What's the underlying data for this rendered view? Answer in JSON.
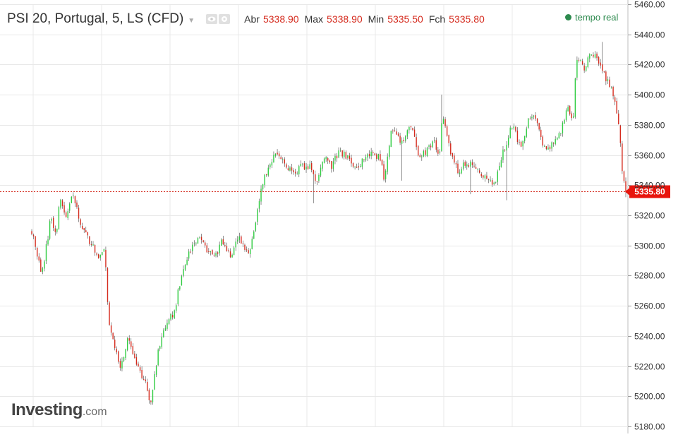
{
  "header": {
    "title": "PSI 20, Portugal, 5, LS (CFD)",
    "open_label": "Abr",
    "open_value": "5338.90",
    "high_label": "Max",
    "high_value": "5338.90",
    "low_label": "Min",
    "low_value": "5335.50",
    "close_label": "Fch",
    "close_value": "5335.80",
    "realtime_label": "tempo real",
    "icons": [
      "eye-icon",
      "gear-icon"
    ]
  },
  "brand": {
    "main": "Investing",
    "tld": ".com"
  },
  "colors": {
    "up": "#2ecc40",
    "down": "#d52b1e",
    "wick": "#444444",
    "grid": "#e8e8e8",
    "price_line": "#d52b1e",
    "price_badge": "#e8150d",
    "realtime": "#2d8a4e"
  },
  "chart_data": {
    "type": "candlestick",
    "ylim": [
      5180,
      5460
    ],
    "y_ticks": [
      5180,
      5200,
      5220,
      5240,
      5260,
      5280,
      5300,
      5320,
      5340,
      5360,
      5380,
      5400,
      5420,
      5440,
      5460
    ],
    "y_tick_labels": [
      "5180.00",
      "5200.00",
      "5220.00",
      "5240.00",
      "5260.00",
      "5280.00",
      "5300.00",
      "5320.00",
      "5340.00",
      "5360.00",
      "5380.00",
      "5400.00",
      "5420.00",
      "5440.00",
      "5460.00"
    ],
    "last_price": 5335.8,
    "last_price_label": "5335.80",
    "grid": true,
    "path_close": [
      [
        0,
        5310
      ],
      [
        1.3,
        5280
      ],
      [
        2.4,
        5318
      ],
      [
        3.1,
        5308
      ],
      [
        3.6,
        5332
      ],
      [
        4.3,
        5318
      ],
      [
        5.1,
        5335
      ],
      [
        6.2,
        5315
      ],
      [
        7.1,
        5306
      ],
      [
        8.3,
        5293
      ],
      [
        9.3,
        5297
      ],
      [
        9.8,
        5248
      ],
      [
        11.2,
        5218
      ],
      [
        12.3,
        5240
      ],
      [
        13.3,
        5220
      ],
      [
        14.3,
        5212
      ],
      [
        15.1,
        5196
      ],
      [
        16.1,
        5230
      ],
      [
        17.1,
        5248
      ],
      [
        18.1,
        5256
      ],
      [
        19.2,
        5285
      ],
      [
        20.2,
        5298
      ],
      [
        21.2,
        5306
      ],
      [
        22.2,
        5298
      ],
      [
        23.2,
        5292
      ],
      [
        24.2,
        5303
      ],
      [
        25.2,
        5292
      ],
      [
        26.1,
        5306
      ],
      [
        27.1,
        5298
      ],
      [
        27.7,
        5294
      ],
      [
        28.5,
        5318
      ],
      [
        29.2,
        5338
      ],
      [
        30.2,
        5355
      ],
      [
        31.2,
        5362
      ],
      [
        32.3,
        5352
      ],
      [
        33.2,
        5348
      ],
      [
        34.3,
        5352
      ],
      [
        35.3,
        5353
      ],
      [
        36.1,
        5342
      ],
      [
        37.1,
        5358
      ],
      [
        38.1,
        5353
      ],
      [
        39.1,
        5362
      ],
      [
        40.2,
        5358
      ],
      [
        41.2,
        5350
      ],
      [
        42.2,
        5358
      ],
      [
        43.2,
        5360
      ],
      [
        44.2,
        5358
      ],
      [
        44.8,
        5345
      ],
      [
        45.7,
        5378
      ],
      [
        47.2,
        5368
      ],
      [
        48.2,
        5380
      ],
      [
        49.2,
        5360
      ],
      [
        50.2,
        5362
      ],
      [
        51.2,
        5370
      ],
      [
        51.8,
        5355
      ],
      [
        52.2,
        5388
      ],
      [
        53.2,
        5362
      ],
      [
        54.2,
        5348
      ],
      [
        55.2,
        5355
      ],
      [
        56.2,
        5352
      ],
      [
        57.2,
        5348
      ],
      [
        58.2,
        5344
      ],
      [
        58.9,
        5338
      ],
      [
        59.6,
        5358
      ],
      [
        61.1,
        5380
      ],
      [
        62.1,
        5364
      ],
      [
        63.1,
        5382
      ],
      [
        64.1,
        5385
      ],
      [
        65.1,
        5364
      ],
      [
        66.1,
        5366
      ],
      [
        67.1,
        5374
      ],
      [
        68.1,
        5392
      ],
      [
        68.8,
        5380
      ],
      [
        69.2,
        5426
      ],
      [
        70.2,
        5418
      ],
      [
        71.2,
        5428
      ],
      [
        72.2,
        5422
      ],
      [
        73.2,
        5408
      ],
      [
        74.2,
        5396
      ],
      [
        74.8,
        5370
      ],
      [
        75.1,
        5345
      ],
      [
        75.5,
        5336
      ]
    ],
    "extremes": [
      [
        15.1,
        5195
      ],
      [
        35.8,
        5328
      ],
      [
        47.0,
        5343
      ],
      [
        52.2,
        5400
      ],
      [
        55.8,
        5334
      ],
      [
        60.3,
        5330
      ],
      [
        72.5,
        5435
      ],
      [
        75.5,
        5332
      ]
    ]
  }
}
